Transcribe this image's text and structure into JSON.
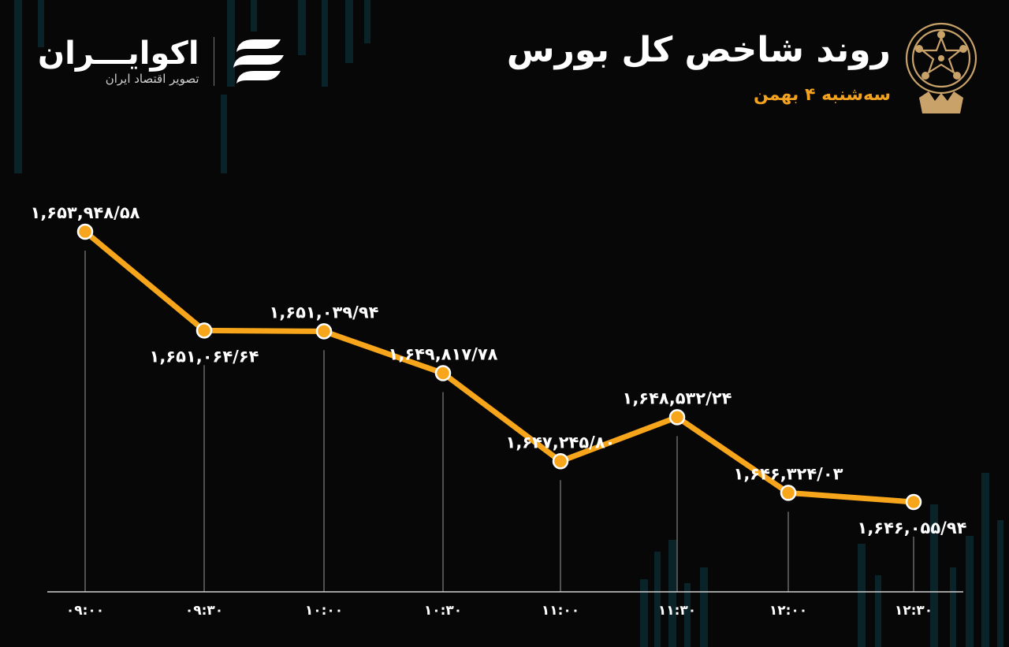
{
  "brand": {
    "name": "اکوایـــران",
    "tagline": "تصویر اقتصاد ایران"
  },
  "header": {
    "title": "روند شاخص کل بورس",
    "subtitle": "سه‌شنبه ۴ بهمن"
  },
  "colors": {
    "background": "#070707",
    "line": "#f7a61c",
    "accent": "#f2a21e",
    "grid": "#9a9a9a",
    "text": "#ffffff"
  },
  "icons": {
    "brand": "stacked-stripes-logo-icon",
    "emblem": "stock-exchange-emblem-icon"
  },
  "chart_data": {
    "type": "line",
    "categories": [
      "۰۹:۰۰",
      "۰۹:۳۰",
      "۱۰:۰۰",
      "۱۰:۳۰",
      "۱۱:۰۰",
      "۱۱:۳۰",
      "۱۲:۰۰",
      "۱۲:۳۰"
    ],
    "values": [
      1653948.58,
      1651064.64,
      1651039.94,
      1649817.78,
      1647245.8,
      1648532.24,
      1646324.03,
      1646055.94
    ],
    "data_labels": [
      "۱,۶۵۳,۹۴۸/۵۸",
      "۱,۶۵۱,۰۶۴/۶۴",
      "۱,۶۵۱,۰۳۹/۹۴",
      "۱,۶۴۹,۸۱۷/۷۸",
      "۱,۶۴۷,۲۴۵/۸۰",
      "۱,۶۴۸,۵۳۲/۲۴",
      "۱,۶۴۶,۳۲۴/۰۳",
      "۱,۶۴۶,۰۵۵/۹۴"
    ],
    "title": "روند شاخص کل بورس",
    "subtitle": "سه‌شنبه ۴ بهمن",
    "xlabel": "",
    "ylabel": "",
    "grid": "vertical drop lines",
    "legend": "none"
  }
}
